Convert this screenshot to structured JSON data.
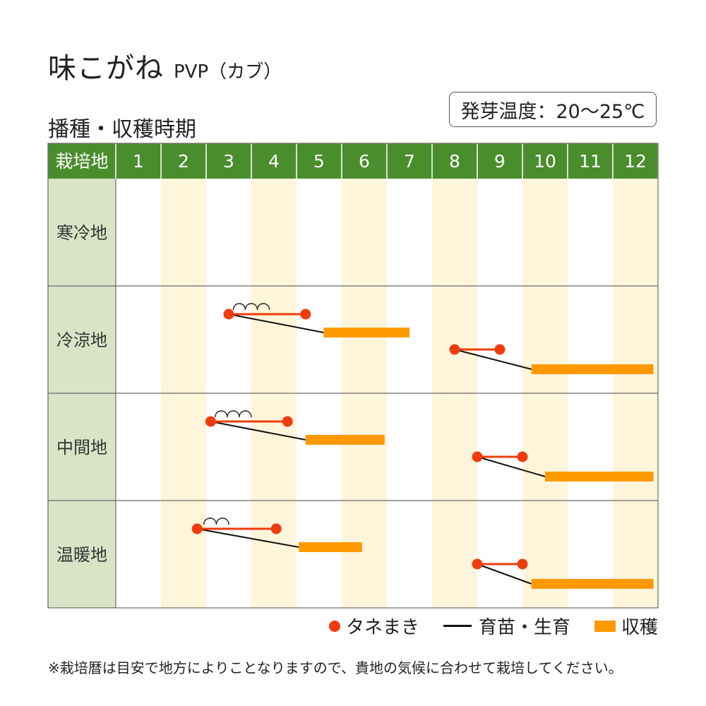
{
  "title": {
    "name": "味こがね",
    "sub": "PVP（カブ）"
  },
  "subtitle": "播種・収穫時期",
  "temperature": "発芽温度：20〜25℃",
  "colors": {
    "header_green": "#4a8d2d",
    "region_col": "#d9e3c6",
    "stripe": "#fff5da",
    "sowing": "#f03c0c",
    "nursery": "#111111",
    "harvest": "#ff9900",
    "grid": "#6a6a6a"
  },
  "chart_data": {
    "type": "gantt",
    "header_label": "栽培地",
    "months": [
      "1",
      "2",
      "3",
      "4",
      "5",
      "6",
      "7",
      "8",
      "9",
      "10",
      "11",
      "12"
    ],
    "regions": [
      {
        "name": "寒冷地",
        "schedules": []
      },
      {
        "name": "冷涼地",
        "schedules": [
          {
            "sow": [
              3.5,
              5.2
            ],
            "tunnel": [
              3.6,
              4.4
            ],
            "tunnel_arcs": 3,
            "line_end": 5.6,
            "harvest": [
              5.6,
              7.5
            ]
          },
          {
            "sow": [
              8.5,
              9.5
            ],
            "tunnel": null,
            "tunnel_arcs": 0,
            "line_end": 10.2,
            "harvest": [
              10.2,
              12.9
            ]
          }
        ]
      },
      {
        "name": "中間地",
        "schedules": [
          {
            "sow": [
              3.1,
              4.8
            ],
            "tunnel": [
              3.2,
              4.0
            ],
            "tunnel_arcs": 3,
            "line_end": 5.2,
            "harvest": [
              5.2,
              6.95
            ]
          },
          {
            "sow": [
              9.0,
              10.0
            ],
            "tunnel": null,
            "tunnel_arcs": 0,
            "line_end": 10.5,
            "harvest": [
              10.5,
              12.9
            ]
          }
        ]
      },
      {
        "name": "温暖地",
        "schedules": [
          {
            "sow": [
              2.8,
              4.55
            ],
            "tunnel": [
              2.95,
              3.5
            ],
            "tunnel_arcs": 2,
            "line_end": 5.05,
            "harvest": [
              5.05,
              6.45
            ]
          },
          {
            "sow": [
              9.0,
              10.0
            ],
            "tunnel": null,
            "tunnel_arcs": 0,
            "line_end": 10.2,
            "harvest": [
              10.2,
              12.9
            ]
          }
        ]
      }
    ]
  },
  "legend": {
    "sowing": "タネまき",
    "nursery": "育苗・生育",
    "harvest": "収穫"
  },
  "note": "※栽培暦は目安で地方によりことなりますので、貴地の気候に合わせて栽培してください。"
}
